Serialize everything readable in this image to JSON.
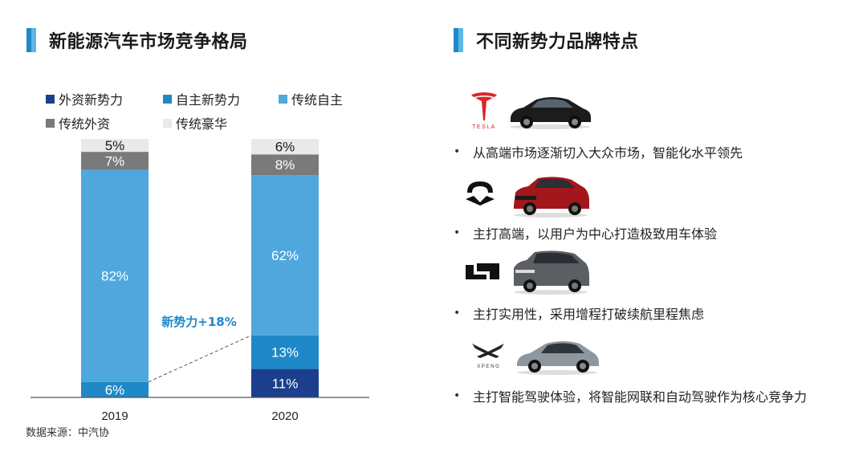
{
  "left_panel": {
    "title": "新能源汽车市场竞争格局"
  },
  "right_panel": {
    "title": "不同新势力品牌特点",
    "brands": [
      {
        "logo": "tesla-logo",
        "logo_text": "TESLA",
        "car": "tesla-car",
        "desc": "从高端市场逐渐切入大众市场，智能化水平领先"
      },
      {
        "logo": "nio-logo",
        "logo_text": "",
        "car": "nio-suv",
        "desc": "主打高端，以用户为中心打造极致用车体验"
      },
      {
        "logo": "li-auto-logo",
        "logo_text": "",
        "car": "li-suv",
        "desc": "主打实用性，采用增程打破续航里程焦虑"
      },
      {
        "logo": "xpeng-logo",
        "logo_text": "X P E N G",
        "car": "xpeng-sedan",
        "desc": "主打智能驾驶体验，将智能网联和自动驾驶作为核心竞争力"
      }
    ]
  },
  "source": "数据来源：中汽协",
  "annotation": "新势力+18%",
  "colors": {
    "foreign_new": "#1b3f8c",
    "domestic_new": "#1f88c8",
    "traditional_domestic": "#4fa7dd",
    "traditional_foreign": "#7a7a7a",
    "traditional_luxury": "#e9e9e9",
    "annotation": "#1f88c8"
  },
  "chart_data": {
    "type": "bar",
    "stacked": true,
    "percent": true,
    "categories": [
      "2019",
      "2020"
    ],
    "series": [
      {
        "name": "外资新势力",
        "values": [
          0,
          11
        ]
      },
      {
        "name": "自主新势力",
        "values": [
          6,
          13
        ]
      },
      {
        "name": "传统自主",
        "values": [
          82,
          62
        ]
      },
      {
        "name": "传统外资",
        "values": [
          7,
          8
        ]
      },
      {
        "name": "传统豪华",
        "values": [
          5,
          6
        ]
      }
    ],
    "data_labels": [
      [
        "",
        "11%"
      ],
      [
        "6%",
        "13%"
      ],
      [
        "82%",
        "62%"
      ],
      [
        "7%",
        "8%"
      ],
      [
        "5%",
        "6%"
      ]
    ],
    "legend_position": "top",
    "grid": false,
    "xlabel": "",
    "ylabel": "",
    "ylim": [
      0,
      100
    ]
  }
}
